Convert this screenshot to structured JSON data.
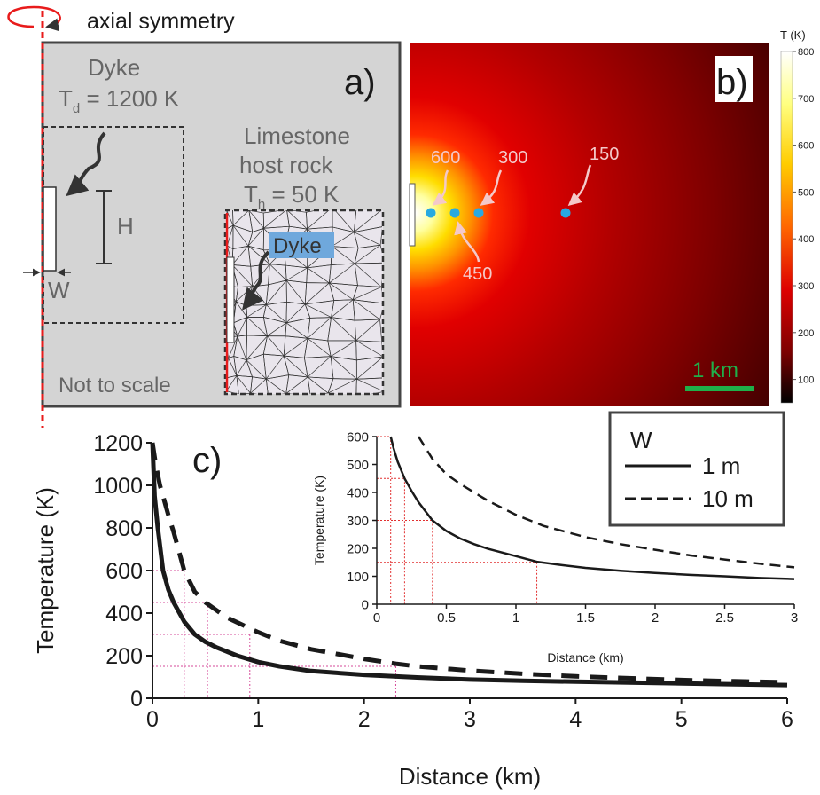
{
  "panel_a": {
    "header": "axial symmetry",
    "label": "a)",
    "dyke_title": "Dyke",
    "dyke_temp_var": "T",
    "dyke_temp_sub": "d",
    "dyke_temp_value": " = 1200 K",
    "host_title_1": "Limestone",
    "host_title_2": "host rock",
    "host_temp_var": "T",
    "host_temp_sub": "h",
    "host_temp_value": " = 50 K",
    "h_label": "H",
    "w_label": "W",
    "mesh_dyke_label": "Dyke",
    "note": "Not to scale",
    "colors": {
      "background": "#d4d4d4",
      "mesh_fill": "#e9e5ec",
      "axis": "#e81b1b",
      "dyke_highlight": "#6fa8dc"
    }
  },
  "panel_b": {
    "label": "b)",
    "colorbar_title": "T (K)",
    "colorbar_ticks": [
      "800",
      "700",
      "600",
      "500",
      "400",
      "300",
      "200",
      "100"
    ],
    "colorbar_range": [
      50,
      800
    ],
    "scale_bar_label": "1 km",
    "probes": [
      "600",
      "450",
      "300",
      "150"
    ],
    "colors": {
      "probe": "#29a9e1",
      "scale_bar": "#1fb04a",
      "probe_label": "#f4c9c9"
    }
  },
  "chart_data": [
    {
      "type": "line",
      "panel": "c)",
      "xlabel": "Distance (km)",
      "ylabel": "Temperature (K)",
      "xlim": [
        0,
        6
      ],
      "ylim": [
        0,
        1200
      ],
      "xticks": [
        "0",
        "1",
        "2",
        "3",
        "4",
        "5",
        "6"
      ],
      "yticks": [
        "0",
        "200",
        "400",
        "600",
        "800",
        "1000",
        "1200"
      ],
      "series": [
        {
          "name": "1 m",
          "style": "solid",
          "x": [
            0,
            0.02,
            0.05,
            0.1,
            0.15,
            0.2,
            0.3,
            0.4,
            0.5,
            0.6,
            0.8,
            1.0,
            1.2,
            1.5,
            2.0,
            2.5,
            3.0,
            3.5,
            4.0,
            4.5,
            5.0,
            5.5,
            6.0
          ],
          "y": [
            1200,
            950,
            800,
            600,
            510,
            450,
            360,
            300,
            265,
            240,
            200,
            170,
            150,
            128,
            110,
            98,
            88,
            82,
            78,
            74,
            70,
            66,
            62
          ]
        },
        {
          "name": "10 m",
          "style": "dashed",
          "x": [
            0,
            0.03,
            0.07,
            0.1,
            0.15,
            0.2,
            0.3,
            0.4,
            0.5,
            0.7,
            1.0,
            1.2,
            1.5,
            2.0,
            2.3,
            2.5,
            3.0,
            3.5,
            4.0,
            4.5,
            5.0,
            5.5,
            6.0
          ],
          "y": [
            1200,
            1100,
            1000,
            950,
            860,
            780,
            600,
            500,
            450,
            380,
            310,
            270,
            230,
            185,
            162,
            150,
            130,
            115,
            103,
            94,
            86,
            80,
            75
          ]
        }
      ],
      "guides": [
        {
          "temperature": 600,
          "distance": 0.3
        },
        {
          "temperature": 450,
          "distance": 0.52
        },
        {
          "temperature": 300,
          "distance": 0.92
        },
        {
          "temperature": 150,
          "distance": 2.3
        }
      ],
      "guide_color": "#d64a9a"
    },
    {
      "type": "line",
      "panel": "inset",
      "xlabel": "Distance (km)",
      "ylabel": "Temperature (K)",
      "xlim": [
        0,
        3
      ],
      "ylim": [
        0,
        600
      ],
      "xticks": [
        "0",
        "0.5",
        "1",
        "1.5",
        "2",
        "2.5",
        "3"
      ],
      "yticks": [
        "0",
        "100",
        "200",
        "300",
        "400",
        "500",
        "600"
      ],
      "series": [
        {
          "name": "1 m",
          "style": "solid",
          "x": [
            0.1,
            0.12,
            0.15,
            0.2,
            0.25,
            0.3,
            0.4,
            0.5,
            0.6,
            0.7,
            0.8,
            0.9,
            1.0,
            1.15,
            1.3,
            1.5,
            1.75,
            2.0,
            2.25,
            2.5,
            2.75,
            3.0
          ],
          "y": [
            600,
            560,
            510,
            450,
            405,
            365,
            300,
            262,
            235,
            215,
            198,
            185,
            172,
            152,
            142,
            130,
            120,
            112,
            105,
            100,
            94,
            90
          ],
          "label_legend": "1 m"
        },
        {
          "name": "10 m",
          "style": "dashed",
          "x": [
            0.3,
            0.4,
            0.5,
            0.6,
            0.8,
            1.0,
            1.2,
            1.5,
            1.75,
            2.0,
            2.25,
            2.5,
            2.75,
            3.0
          ],
          "y": [
            600,
            520,
            465,
            430,
            370,
            320,
            280,
            240,
            215,
            195,
            175,
            160,
            145,
            132
          ]
        }
      ],
      "guides": [
        {
          "temperature": 600,
          "distance": 0.1
        },
        {
          "temperature": 450,
          "distance": 0.2
        },
        {
          "temperature": 300,
          "distance": 0.4
        },
        {
          "temperature": 150,
          "distance": 1.15
        }
      ],
      "guide_color": "#e23030"
    }
  ],
  "legend": {
    "title": "W",
    "entries": [
      {
        "label": "1 m",
        "style": "solid"
      },
      {
        "label": "10 m",
        "style": "dashed"
      }
    ]
  },
  "panel_c": {
    "label": "c)"
  }
}
